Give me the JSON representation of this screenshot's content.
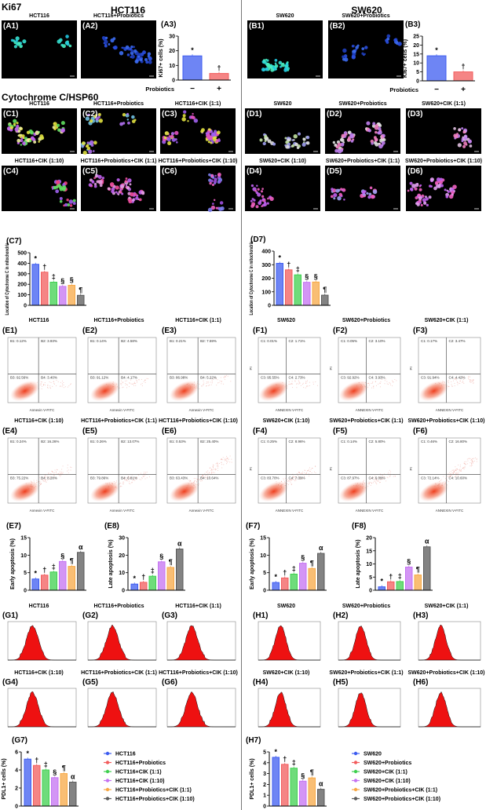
{
  "headings": {
    "ki67": "Ki67",
    "hct116": "HCT116",
    "sw620": "SW620",
    "cyto": "Cytochrome C/HSP60"
  },
  "images": [
    {
      "id": "A1",
      "label": "(A1)",
      "title": "HCT116",
      "colors": [
        "#35e0d0",
        "#22c8e0",
        "#4af0c0"
      ]
    },
    {
      "id": "A2",
      "label": "(A2)",
      "title": "HCT116+Probiotics",
      "colors": [
        "#2a4fe0",
        "#3c6cf0",
        "#1f3fc0"
      ]
    },
    {
      "id": "B1",
      "label": "(B1)",
      "title": "SW620",
      "colors": [
        "#35e0d0",
        "#22c8e0",
        "#4af0c0"
      ]
    },
    {
      "id": "B2",
      "label": "(B2)",
      "title": "SW620+Probiotics",
      "colors": [
        "#2a4fe0",
        "#3c6cf0",
        "#1f3fc0"
      ]
    },
    {
      "id": "C1",
      "label": "(C1)",
      "title": "HCT116",
      "colors": [
        "#e0e040",
        "#60e060",
        "#c060f0",
        "#f0f0a0"
      ]
    },
    {
      "id": "C2",
      "label": "(C2)",
      "title": "HCT116+Probiotics",
      "colors": [
        "#b070f0",
        "#e0e040",
        "#70c0e0"
      ]
    },
    {
      "id": "C3",
      "label": "(C3)",
      "title": "HCT116+CIK (1:1)",
      "colors": [
        "#a060f0",
        "#e050c0",
        "#e0e040"
      ]
    },
    {
      "id": "C4",
      "label": "(C4)",
      "title": "HCT116+CIK (1:10)",
      "colors": [
        "#a060f0",
        "#f04080",
        "#60e060"
      ]
    },
    {
      "id": "C5",
      "label": "(C5)",
      "title": "HCT116+Probiotics+CIK (1:1)",
      "colors": [
        "#c060f0",
        "#f050a0",
        "#e0a0e0"
      ]
    },
    {
      "id": "C6",
      "label": "(C6)",
      "title": "HCT116+Probiotics+CIK (1:10)",
      "colors": [
        "#a050e0",
        "#f060c0",
        "#8080f0"
      ]
    },
    {
      "id": "D1",
      "label": "(D1)",
      "title": "SW620",
      "colors": [
        "#c0e0a0",
        "#a0a0f0",
        "#e0e0e0"
      ]
    },
    {
      "id": "D2",
      "label": "(D2)",
      "title": "SW620+Probiotics",
      "colors": [
        "#c080f0",
        "#e0e0e0",
        "#f080c0"
      ]
    },
    {
      "id": "D3",
      "label": "(D3)",
      "title": "SW620+CIK (1:1)",
      "colors": [
        "#c080f0",
        "#f080c0",
        "#e0c0e0"
      ]
    },
    {
      "id": "D4",
      "label": "(D4)",
      "title": "SW620+CIK (1:10)",
      "colors": [
        "#c060f0",
        "#f060c0"
      ]
    },
    {
      "id": "D5",
      "label": "(D5)",
      "title": "SW620+Probiotics+CIK (1:1)",
      "colors": [
        "#c060f0",
        "#f060c0",
        "#a0a0f0"
      ]
    },
    {
      "id": "D6",
      "label": "(D6)",
      "title": "SW620+Probiotics+CIK (1:10)",
      "colors": [
        "#c060f0",
        "#f060c0",
        "#e0a0f0"
      ]
    }
  ],
  "flow": [
    {
      "id": "E1",
      "label": "(E1)",
      "title": "HCT116",
      "quadrants": [
        "B1: 0.12%",
        "B2: 3.93%",
        "B3: 92.56%",
        "B4: 3.40%"
      ],
      "xlabel": "Annexin V-FITC",
      "ylabel": ""
    },
    {
      "id": "E2",
      "label": "(E2)",
      "title": "HCT116+Probiotics",
      "quadrants": [
        "B1: 0.14%",
        "B2: 4.58%",
        "B3: 91.12%",
        "B4: 4.17%"
      ],
      "xlabel": "Annexin V-FITC",
      "ylabel": ""
    },
    {
      "id": "E3",
      "label": "(E3)",
      "title": "HCT116+CIK (1:1)",
      "quadrants": [
        "B1: 0.21%",
        "B2: 7.59%",
        "B3: 86.98%",
        "B4: 5.22%"
      ],
      "xlabel": "Annexin V-FITC",
      "ylabel": ""
    },
    {
      "id": "E4",
      "label": "(E4)",
      "title": "HCT116+CIK (1:10)",
      "quadrants": [
        "B1: 0.24%",
        "B2: 16.26%",
        "B3: 75.22%",
        "B4: 8.28%"
      ],
      "xlabel": "Annexin V-FITC",
      "ylabel": ""
    },
    {
      "id": "E5",
      "label": "(E5)",
      "title": "HCT116+Probiotics+CIK (1:1)",
      "quadrants": [
        "B1: 0.26%",
        "B2: 13.07%",
        "B3: 79.86%",
        "B4: 6.81%"
      ],
      "xlabel": "Annexin V-FITC",
      "ylabel": ""
    },
    {
      "id": "E6",
      "label": "(E6)",
      "title": "HCT116+Probiotics+CIK (1:10)",
      "quadrants": [
        "B1: 0.53%",
        "B2: 25.40%",
        "B3: 63.43%",
        "B4: 10.64%"
      ],
      "xlabel": "Annexin V-FITC",
      "ylabel": ""
    },
    {
      "id": "F1",
      "label": "(F1)",
      "title": "SW620",
      "quadrants": [
        "C1: 0.01%",
        "C2: 1.71%",
        "C3: 95.55%",
        "C4: 2.73%"
      ],
      "xlabel": "ANNEXIN V-FITC",
      "ylabel": "PI"
    },
    {
      "id": "F2",
      "label": "(F2)",
      "title": "SW620+Probiotics",
      "quadrants": [
        "C1: 0.05%",
        "C2: 3.10%",
        "C3: 92.92%",
        "C4: 3.93%"
      ],
      "xlabel": "ANNEXIN V-FITC",
      "ylabel": "PI"
    },
    {
      "id": "F3",
      "label": "(F3)",
      "title": "SW620+CIK (1:1)",
      "quadrants": [
        "C1: 0.17%",
        "C2: 3.47%",
        "C3: 91.94%",
        "C4: 4.42%"
      ],
      "xlabel": "ANNEXIN V-FITC",
      "ylabel": "PI"
    },
    {
      "id": "F4",
      "label": "(F4)",
      "title": "SW620+CIK (1:10)",
      "quadrants": [
        "C1: 0.25%",
        "C2: 8.96%",
        "C3: 83.70%",
        "C4: 7.09%"
      ],
      "xlabel": "ANNEXIN V-FITC",
      "ylabel": "PI"
    },
    {
      "id": "F5",
      "label": "(F5)",
      "title": "SW620+Probiotics+CIK (1:1)",
      "quadrants": [
        "C1: 0.14%",
        "C2: 5.80%",
        "C3: 87.97%",
        "C4: 6.09%"
      ],
      "xlabel": "ANNEXIN V-FITC",
      "ylabel": "PI"
    },
    {
      "id": "F6",
      "label": "(F6)",
      "title": "SW620+Probiotics+CIK (1:10)",
      "quadrants": [
        "C1: 0.46%",
        "C2: 16.80%",
        "C3: 72.14%",
        "C4: 10.60%"
      ],
      "xlabel": "ANNEXIN V-FITC",
      "ylabel": "PI"
    }
  ],
  "histograms": [
    {
      "id": "G1",
      "label": "(G1)",
      "title": "HCT116"
    },
    {
      "id": "G2",
      "label": "(G2)",
      "title": "HCT116+Probiotics"
    },
    {
      "id": "G3",
      "label": "(G3)",
      "title": "HCT116+CIK (1:1)"
    },
    {
      "id": "G4",
      "label": "(G4)",
      "title": "HCT116+CIK (1:10)"
    },
    {
      "id": "G5",
      "label": "(G5)",
      "title": "HCT116+Probiotics+CIK (1:1)"
    },
    {
      "id": "G6",
      "label": "(G6)",
      "title": "HCT116+Probiotics+CIK (1:10)"
    },
    {
      "id": "H1",
      "label": "(H1)",
      "title": "SW620"
    },
    {
      "id": "H2",
      "label": "(H2)",
      "title": "SW620+Probiotics"
    },
    {
      "id": "H3",
      "label": "(H3)",
      "title": "SW620+CIK (1:1)"
    },
    {
      "id": "H4",
      "label": "(H4)",
      "title": "SW620+CIK (1:10)"
    },
    {
      "id": "H5",
      "label": "(H5)",
      "title": "SW620+Probiotics+CIK (1:1)"
    },
    {
      "id": "H6",
      "label": "(H6)",
      "title": "SW620+Probiotics+CIK (1:10)"
    }
  ],
  "colors": {
    "blue": "#3d5cf0",
    "red": "#f25c5c",
    "green": "#3fd04f",
    "purple": "#c472f2",
    "orange": "#f7a845",
    "gray": "#5a5a5a",
    "histogram_fill": "#ee1111"
  },
  "chart_data": [
    {
      "id": "A3",
      "label": "(A3)",
      "type": "bar",
      "ylabel": "Ki67+ cells (%)",
      "xlabel": "Probiotics",
      "categories": [
        "−",
        "+"
      ],
      "values": [
        16.5,
        4.5
      ],
      "ylim": [
        0,
        30
      ],
      "yticks": [
        0,
        10,
        20,
        30
      ],
      "markers": [
        "*",
        "†"
      ],
      "bar_colors": [
        "blue",
        "red"
      ]
    },
    {
      "id": "B3",
      "label": "(B3)",
      "type": "bar",
      "ylabel": "Ki67+ cells (%)",
      "xlabel": "Probiotics",
      "categories": [
        "−",
        "+"
      ],
      "values": [
        14,
        5
      ],
      "ylim": [
        0,
        25
      ],
      "yticks": [
        0,
        5,
        10,
        15,
        20,
        25
      ],
      "markers": [
        "*",
        "†"
      ],
      "bar_colors": [
        "blue",
        "red"
      ]
    },
    {
      "id": "C7",
      "label": "(C7)",
      "type": "bar",
      "ylabel": "Location of Cytochrome C in mitochondria",
      "values": [
        390,
        315,
        220,
        180,
        190,
        95
      ],
      "ylim": [
        0,
        500
      ],
      "yticks": [
        0,
        100,
        200,
        300,
        400,
        500
      ],
      "markers": [
        "*",
        "†",
        "‡",
        "§",
        "§",
        "¶"
      ],
      "bar_colors": [
        "blue",
        "red",
        "green",
        "purple",
        "orange",
        "gray"
      ]
    },
    {
      "id": "D7",
      "label": "(D7)",
      "type": "bar",
      "ylabel": "Location of Cytochrome C in mitochondria",
      "values": [
        310,
        262,
        225,
        170,
        172,
        75
      ],
      "ylim": [
        0,
        400
      ],
      "yticks": [
        0,
        100,
        200,
        300,
        400
      ],
      "markers": [
        "*",
        "†",
        "‡",
        "§",
        "§",
        "¶"
      ],
      "bar_colors": [
        "blue",
        "red",
        "green",
        "purple",
        "orange",
        "gray"
      ]
    },
    {
      "id": "E7",
      "label": "(E7)",
      "type": "bar",
      "ylabel": "Early apoptosis (%)",
      "values": [
        3.2,
        4.3,
        5.2,
        8.2,
        6.8,
        10.8
      ],
      "ylim": [
        0,
        15
      ],
      "yticks": [
        0,
        5,
        10,
        15
      ],
      "markers": [
        "*",
        "†",
        "‡",
        "§",
        "¶",
        "α"
      ],
      "bar_colors": [
        "blue",
        "red",
        "green",
        "purple",
        "orange",
        "gray"
      ]
    },
    {
      "id": "E8",
      "label": "(E8)",
      "type": "bar",
      "ylabel": "Late apoptosis (%)",
      "values": [
        3.5,
        4.5,
        8.0,
        16.2,
        13.0,
        23.5
      ],
      "ylim": [
        0,
        30
      ],
      "yticks": [
        0,
        10,
        20,
        30
      ],
      "markers": [
        "*",
        "†",
        "‡",
        "§",
        "¶",
        "α"
      ],
      "bar_colors": [
        "blue",
        "red",
        "green",
        "purple",
        "orange",
        "gray"
      ]
    },
    {
      "id": "F7",
      "label": "(F7)",
      "type": "bar",
      "ylabel": "Early apoptosis (%)",
      "values": [
        2.2,
        3.5,
        4.6,
        7.7,
        6.2,
        10.5
      ],
      "ylim": [
        0,
        15
      ],
      "yticks": [
        0,
        5,
        10,
        15
      ],
      "markers": [
        "*",
        "†",
        "‡",
        "§",
        "¶",
        "α"
      ],
      "bar_colors": [
        "blue",
        "red",
        "green",
        "purple",
        "orange",
        "gray"
      ]
    },
    {
      "id": "F8",
      "label": "(F8)",
      "type": "bar",
      "ylabel": "Late apoptosis (%)",
      "values": [
        1.3,
        3.2,
        3.3,
        8.8,
        5.8,
        16.5
      ],
      "ylim": [
        0,
        20
      ],
      "yticks": [
        0,
        5,
        10,
        15,
        20
      ],
      "markers": [
        "*",
        "†",
        "‡",
        "§",
        "¶",
        "α"
      ],
      "bar_colors": [
        "blue",
        "red",
        "green",
        "purple",
        "orange",
        "gray"
      ]
    },
    {
      "id": "G7",
      "label": "(G7)",
      "type": "bar",
      "ylabel": "PDL1+ cells (%)",
      "values": [
        5.2,
        4.5,
        4.0,
        3.15,
        3.6,
        2.65
      ],
      "ylim": [
        0,
        6
      ],
      "yticks": [
        0,
        2,
        4,
        6
      ],
      "markers": [
        "*",
        "†",
        "‡",
        "§",
        "¶",
        "α"
      ],
      "bar_colors": [
        "blue",
        "red",
        "green",
        "purple",
        "orange",
        "gray"
      ],
      "legend": [
        "HCT116",
        "HCT116+Probiotics",
        "HCT116+CIK (1:1)",
        "HCT116+CIK (1:10)",
        "HCT116+Probiotics+CIK (1:1)",
        "HCT116+Probiotics+CIK (1:10)"
      ]
    },
    {
      "id": "H7",
      "label": "(H7)",
      "type": "bar",
      "ylabel": "PDL1+ cells (%)",
      "values": [
        4.5,
        3.85,
        3.5,
        2.3,
        2.6,
        1.55
      ],
      "ylim": [
        0,
        5
      ],
      "yticks": [
        0,
        1,
        2,
        3,
        4,
        5
      ],
      "markers": [
        "*",
        "†",
        "‡",
        "§",
        "¶",
        "α"
      ],
      "bar_colors": [
        "blue",
        "red",
        "green",
        "purple",
        "orange",
        "gray"
      ],
      "legend": [
        "SW620",
        "SW620+Probiotics",
        "SW620+CIK (1:1)",
        "SW620+CIK (1:10)",
        "SW620+Probiotics+CIK (1:1)",
        "SW620+Probiotics+CIK (1:10)"
      ]
    }
  ]
}
